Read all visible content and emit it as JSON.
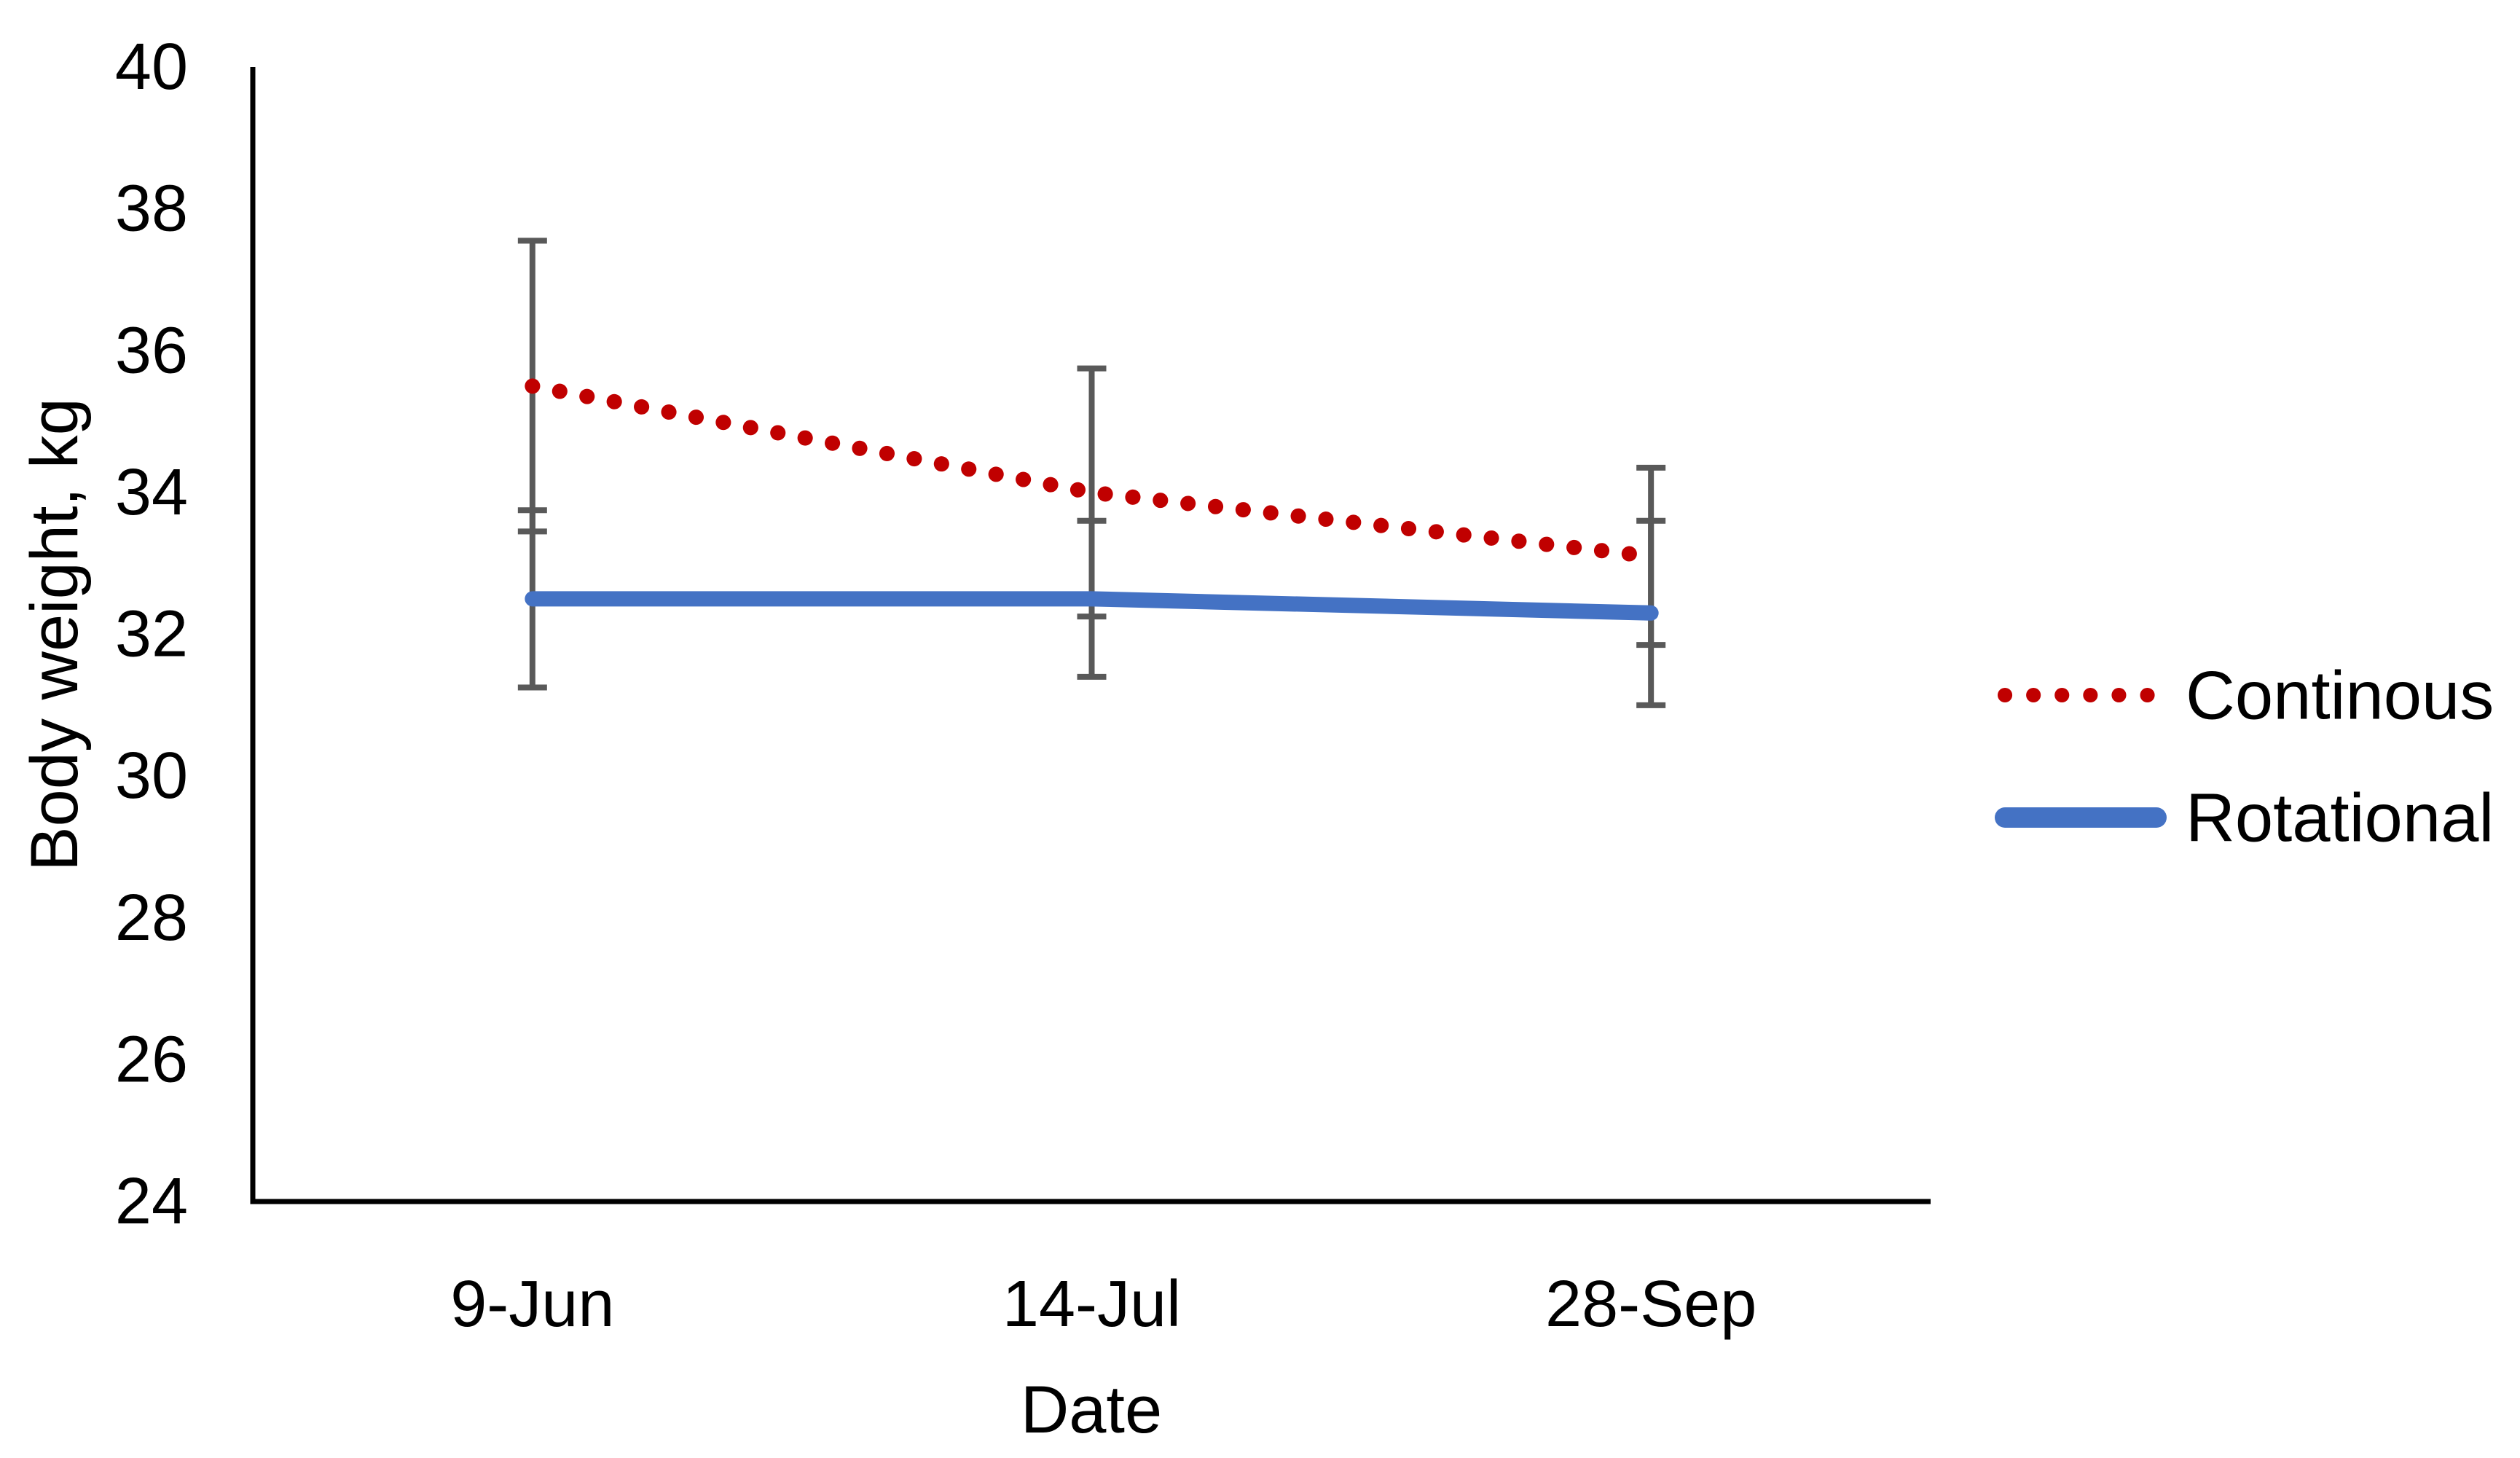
{
  "chart_data": {
    "type": "line",
    "title": "",
    "xlabel": "Date",
    "ylabel": "Body weight, kg",
    "categories": [
      "9-Jun",
      "14-Jul",
      "28-Sep"
    ],
    "series": [
      {
        "name": "Continous",
        "color": "#C00000",
        "line_style": "dotted",
        "values": [
          35.5,
          34.0,
          33.1
        ],
        "error_bars_plus_minus": [
          2.05,
          1.75,
          1.25
        ]
      },
      {
        "name": "Rotational",
        "color": "#4472C4",
        "line_style": "solid",
        "values": [
          32.5,
          32.5,
          32.3
        ],
        "error_bars_plus_minus": [
          1.25,
          1.1,
          1.3
        ]
      }
    ],
    "y_axis": {
      "min": 24,
      "max": 40,
      "tick_step": 2,
      "tick_labels": [
        "24",
        "26",
        "28",
        "30",
        "32",
        "34",
        "36",
        "38",
        "40"
      ]
    },
    "error_bar_color": "#595959",
    "axis_color": "#000000",
    "text_color": "#000000",
    "legend_position": "right",
    "grid": false
  }
}
